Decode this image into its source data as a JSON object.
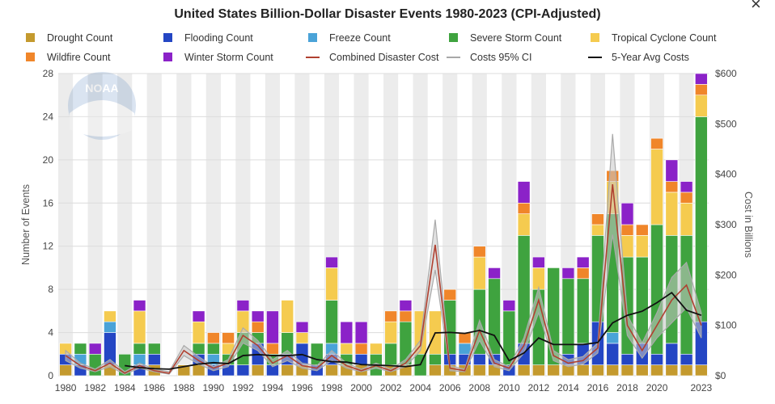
{
  "chart_data": {
    "type": "bar",
    "title": "United States Billion-Dollar Disaster Events 1980-2023 (CPI-Adjusted)",
    "ylabel": "Number of Events",
    "y2label": "Cost in Billions",
    "ylim": [
      0,
      28
    ],
    "y2lim": [
      0,
      600
    ],
    "yticks": [
      "0",
      "4",
      "8",
      "12",
      "16",
      "20",
      "24",
      "28"
    ],
    "y2ticks": [
      "$0",
      "$100",
      "$200",
      "$300",
      "$400",
      "$500",
      "$600"
    ],
    "xticks": [
      "1980",
      "1982",
      "1984",
      "1986",
      "1988",
      "1990",
      "1992",
      "1994",
      "1996",
      "1998",
      "2000",
      "2002",
      "2004",
      "2006",
      "2008",
      "2010",
      "2012",
      "2014",
      "2016",
      "2018",
      "2020",
      "2023"
    ],
    "years": [
      1980,
      1981,
      1982,
      1983,
      1984,
      1985,
      1986,
      1987,
      1988,
      1989,
      1990,
      1991,
      1992,
      1993,
      1994,
      1995,
      1996,
      1997,
      1998,
      1999,
      2000,
      2001,
      2002,
      2003,
      2004,
      2005,
      2006,
      2007,
      2008,
      2009,
      2010,
      2011,
      2012,
      2013,
      2014,
      2015,
      2016,
      2017,
      2018,
      2019,
      2020,
      2021,
      2022,
      2023
    ],
    "legend_position": "top",
    "grid": true,
    "series": [
      {
        "name": "Drought Count",
        "kind": "bar",
        "color": "#c49a2e",
        "values": [
          1,
          0,
          0,
          1,
          0,
          0,
          1,
          0,
          1,
          1,
          0,
          0,
          0,
          1,
          0,
          1,
          1,
          0,
          1,
          1,
          1,
          0,
          1,
          1,
          0,
          1,
          1,
          1,
          1,
          1,
          0,
          1,
          1,
          1,
          1,
          1,
          1,
          1,
          1,
          1,
          1,
          1,
          1,
          1
        ]
      },
      {
        "name": "Flooding Count",
        "kind": "bar",
        "color": "#2446c4",
        "values": [
          1,
          1,
          0,
          3,
          0,
          1,
          1,
          0,
          0,
          1,
          1,
          1,
          1,
          2,
          1,
          1,
          2,
          1,
          1,
          0,
          1,
          0,
          0,
          0,
          0,
          0,
          1,
          1,
          1,
          1,
          1,
          2,
          0,
          0,
          1,
          2,
          4,
          2,
          1,
          2,
          1,
          2,
          1,
          4
        ]
      },
      {
        "name": "Freeze Count",
        "kind": "bar",
        "color": "#4aa3d8",
        "values": [
          0,
          1,
          0,
          1,
          0,
          1,
          0,
          0,
          0,
          0,
          1,
          0,
          0,
          0,
          0,
          0,
          0,
          0,
          1,
          0,
          0,
          0,
          0,
          0,
          0,
          0,
          0,
          1,
          0,
          0,
          0,
          0,
          0,
          0,
          0,
          0,
          0,
          1,
          0,
          0,
          0,
          0,
          0,
          0
        ]
      },
      {
        "name": "Severe Storm Count",
        "kind": "bar",
        "color": "#3fa33f",
        "values": [
          0,
          1,
          2,
          0,
          2,
          1,
          1,
          0,
          0,
          1,
          1,
          1,
          3,
          1,
          1,
          2,
          0,
          2,
          4,
          1,
          0,
          2,
          2,
          4,
          2,
          1,
          5,
          0,
          6,
          7,
          5,
          10,
          7,
          9,
          7,
          6,
          8,
          11,
          9,
          8,
          12,
          10,
          11,
          19
        ]
      },
      {
        "name": "Tropical Cyclone Count",
        "kind": "bar",
        "color": "#f5cb4f",
        "values": [
          1,
          0,
          0,
          1,
          0,
          3,
          0,
          0,
          0,
          2,
          0,
          1,
          2,
          0,
          0,
          3,
          1,
          0,
          3,
          1,
          0,
          1,
          2,
          0,
          4,
          4,
          0,
          0,
          3,
          0,
          0,
          2,
          2,
          0,
          0,
          0,
          1,
          3,
          2,
          2,
          7,
          4,
          3,
          2
        ]
      },
      {
        "name": "Wildfire Count",
        "kind": "bar",
        "color": "#f0862a",
        "values": [
          0,
          0,
          0,
          0,
          0,
          0,
          0,
          0,
          0,
          0,
          1,
          1,
          0,
          1,
          1,
          0,
          0,
          0,
          0,
          0,
          1,
          0,
          1,
          1,
          0,
          0,
          1,
          1,
          1,
          0,
          0,
          1,
          0,
          0,
          0,
          1,
          1,
          1,
          1,
          1,
          1,
          1,
          1,
          1
        ]
      },
      {
        "name": "Winter Storm Count",
        "kind": "bar",
        "color": "#8b22c8",
        "values": [
          0,
          0,
          1,
          0,
          0,
          1,
          0,
          0,
          0,
          1,
          0,
          0,
          1,
          1,
          3,
          0,
          1,
          0,
          1,
          2,
          2,
          0,
          0,
          1,
          0,
          0,
          0,
          0,
          0,
          1,
          1,
          2,
          1,
          0,
          1,
          1,
          0,
          0,
          2,
          0,
          0,
          2,
          1,
          1
        ]
      },
      {
        "name": "Combined Disaster Cost",
        "kind": "line",
        "color": "#b04030",
        "values": [
          40,
          20,
          10,
          25,
          5,
          20,
          10,
          5,
          50,
          30,
          15,
          25,
          80,
          60,
          25,
          40,
          20,
          15,
          40,
          20,
          10,
          20,
          10,
          25,
          60,
          260,
          15,
          10,
          90,
          25,
          15,
          60,
          150,
          40,
          25,
          30,
          55,
          380,
          100,
          50,
          100,
          150,
          180,
          100
        ]
      },
      {
        "name": "Costs 95% CI",
        "kind": "band",
        "color": "#b0b0b0",
        "upper": [
          50,
          25,
          13,
          32,
          8,
          25,
          13,
          8,
          60,
          38,
          18,
          32,
          95,
          70,
          32,
          50,
          25,
          20,
          50,
          25,
          13,
          25,
          13,
          32,
          70,
          310,
          20,
          13,
          110,
          32,
          18,
          75,
          175,
          50,
          32,
          38,
          65,
          480,
          120,
          65,
          125,
          195,
          225,
          125
        ],
        "lower": [
          30,
          15,
          8,
          18,
          3,
          15,
          8,
          3,
          40,
          23,
          10,
          18,
          65,
          50,
          18,
          30,
          15,
          10,
          30,
          15,
          8,
          15,
          8,
          18,
          50,
          210,
          10,
          8,
          70,
          18,
          10,
          45,
          125,
          30,
          18,
          23,
          45,
          280,
          80,
          35,
          75,
          105,
          135,
          75
        ]
      },
      {
        "name": "5-Year Avg Costs",
        "kind": "line",
        "color": "#111111",
        "values": [
          null,
          null,
          null,
          null,
          20,
          16,
          14,
          13,
          18,
          23,
          26,
          24,
          40,
          42,
          40,
          40,
          42,
          32,
          28,
          27,
          22,
          21,
          20,
          18,
          22,
          85,
          86,
          84,
          90,
          80,
          30,
          45,
          75,
          62,
          62,
          62,
          66,
          105,
          120,
          128,
          145,
          165,
          130,
          120
        ]
      }
    ]
  },
  "watermark": {
    "text": "NOAA"
  },
  "close_icon": "×"
}
